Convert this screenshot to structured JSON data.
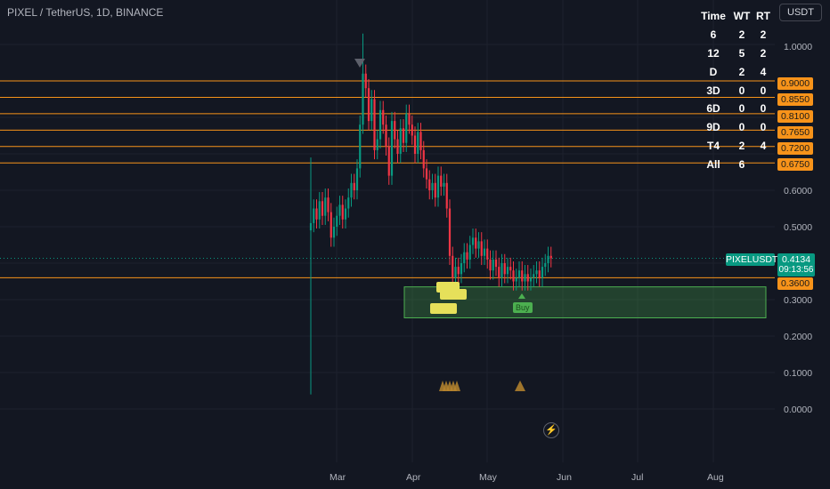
{
  "header": {
    "title": "PIXEL / TetherUS, 1D, BINANCE",
    "currency": "USDT"
  },
  "stats": {
    "headers": [
      "Time",
      "WT",
      "RT"
    ],
    "rows": [
      [
        "6",
        "2",
        "2"
      ],
      [
        "12",
        "5",
        "2"
      ],
      [
        "D",
        "2",
        "4"
      ],
      [
        "3D",
        "0",
        "0"
      ],
      [
        "6D",
        "0",
        "0"
      ],
      [
        "9D",
        "0",
        "0"
      ],
      [
        "T4",
        "2",
        "4"
      ],
      [
        "All",
        "6",
        ""
      ]
    ]
  },
  "levels": [
    "0.9000",
    "0.8550",
    "0.8100",
    "0.7650",
    "0.7200",
    "0.6750",
    "0.3600"
  ],
  "price_axis": [
    "1.0000",
    "0.6000",
    "0.5000",
    "0.3000",
    "0.2000",
    "0.1000",
    "0.0000"
  ],
  "time_axis": [
    "Mar",
    "Apr",
    "May",
    "Jun",
    "Jul",
    "Aug"
  ],
  "current": {
    "symbol": "PIXELUSDT",
    "price": "0.4134",
    "countdown": "09:13:56"
  },
  "labels": {
    "buy": "Buy"
  },
  "colors": {
    "up": "#089981",
    "down": "#f23645",
    "level": "#f7931a",
    "zone": "#4caf50",
    "background": "#131722"
  },
  "chart_data": {
    "type": "candlestick",
    "title": "PIXEL / TetherUS, 1D, BINANCE",
    "ylim": [
      0,
      1.1
    ],
    "support_zone": [
      0.25,
      0.335
    ],
    "horizontal_levels": [
      0.9,
      0.855,
      0.81,
      0.765,
      0.72,
      0.675,
      0.36
    ],
    "last_price": 0.4134,
    "close": [
      0.51,
      0.55,
      0.52,
      0.57,
      0.53,
      0.58,
      0.54,
      0.47,
      0.5,
      0.53,
      0.56,
      0.52,
      0.55,
      0.58,
      0.62,
      0.6,
      0.66,
      0.78,
      0.92,
      0.88,
      0.79,
      0.85,
      0.71,
      0.74,
      0.82,
      0.78,
      0.72,
      0.64,
      0.79,
      0.74,
      0.7,
      0.77,
      0.73,
      0.81,
      0.78,
      0.75,
      0.7,
      0.76,
      0.71,
      0.66,
      0.63,
      0.6,
      0.62,
      0.58,
      0.64,
      0.61,
      0.62,
      0.55,
      0.42,
      0.36,
      0.39,
      0.37,
      0.4,
      0.43,
      0.41,
      0.45,
      0.47,
      0.44,
      0.46,
      0.42,
      0.44,
      0.41,
      0.38,
      0.41,
      0.39,
      0.36,
      0.4,
      0.37,
      0.39,
      0.38,
      0.35,
      0.36,
      0.38,
      0.35,
      0.37,
      0.35,
      0.36,
      0.37,
      0.38,
      0.36,
      0.39,
      0.4,
      0.42,
      0.4134
    ]
  }
}
